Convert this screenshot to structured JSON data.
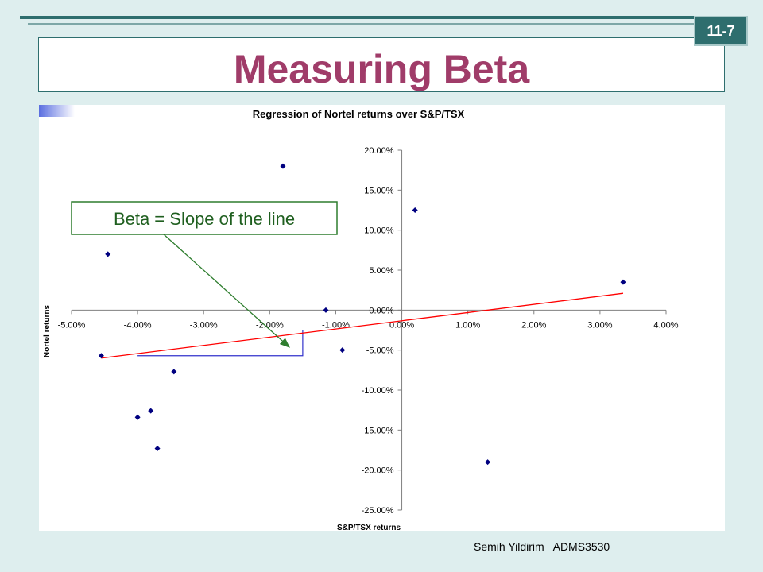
{
  "slide": {
    "title": "Measuring Beta",
    "number": "11-7",
    "footer_author": "Semih Yildirim",
    "footer_course": "ADMS3530"
  },
  "callout": {
    "text": "Beta = Slope of the line"
  },
  "chart_data": {
    "type": "scatter",
    "title": "Regression of Nortel returns over S&P/TSX",
    "xlabel": "S&P/TSX returns",
    "ylabel": "Nortel returns",
    "xlim": [
      -5,
      4
    ],
    "ylim": [
      -25,
      20
    ],
    "x_ticks": [
      "-5.00%",
      "-4.00%",
      "-3.00%",
      "-2.00%",
      "-1.00%",
      "0.00%",
      "1.00%",
      "2.00%",
      "3.00%",
      "4.00%"
    ],
    "y_ticks": [
      "20.00%",
      "15.00%",
      "10.00%",
      "5.00%",
      "0.00%",
      "-5.00%",
      "-10.00%",
      "-15.00%",
      "-20.00%",
      "-25.00%"
    ],
    "points": [
      {
        "x": -4.45,
        "y": 7.0
      },
      {
        "x": -1.8,
        "y": 18.0
      },
      {
        "x": 0.2,
        "y": 12.5
      },
      {
        "x": 3.35,
        "y": 3.5
      },
      {
        "x": -1.15,
        "y": 0.0
      },
      {
        "x": -0.9,
        "y": -5.0
      },
      {
        "x": -4.55,
        "y": -5.7
      },
      {
        "x": -3.45,
        "y": -7.7
      },
      {
        "x": -4.0,
        "y": -13.4
      },
      {
        "x": -3.8,
        "y": -12.6
      },
      {
        "x": -3.7,
        "y": -17.3
      },
      {
        "x": 1.3,
        "y": -19.0
      }
    ],
    "trendline": {
      "x1": -4.55,
      "y1": -6.0,
      "x2": 3.35,
      "y2": 2.1
    },
    "slope_guide": {
      "x_start": -4.0,
      "x_corner": -1.5,
      "y_base": -5.7,
      "y_top": -2.5
    },
    "colors": {
      "points": "#000080",
      "trendline": "#ff0000",
      "guide": "#3333cc",
      "arrow": "#2e7d2e"
    }
  }
}
